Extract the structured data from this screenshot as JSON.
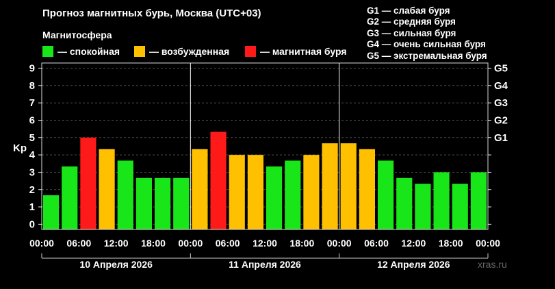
{
  "title": "Прогноз магнитных бурь, Москва (UTC+03)",
  "legend": {
    "title": "Магнитосфера",
    "items": [
      {
        "label": "— спокойная",
        "color": "#19e619"
      },
      {
        "label": "— возбужденная",
        "color": "#ffc000"
      },
      {
        "label": "— магнитная буря",
        "color": "#ff1a1a"
      }
    ]
  },
  "g_scale": [
    "G1 — слабая буря",
    "G2 — средняя буря",
    "G3 — сильная буря",
    "G4 — очень сильная буря",
    "G5 — экстремальная буря"
  ],
  "watermark": "xras.ru",
  "chart_data": {
    "type": "bar",
    "ylabel": "Kp",
    "ylim": [
      -0.3,
      9.3
    ],
    "yticks": [
      "0",
      "1",
      "2",
      "3",
      "4",
      "5",
      "6",
      "7",
      "8",
      "9"
    ],
    "right_ticks": [
      {
        "label": "G1",
        "kp": 5
      },
      {
        "label": "G2",
        "kp": 6
      },
      {
        "label": "G3",
        "kp": 7
      },
      {
        "label": "G4",
        "kp": 8
      },
      {
        "label": "G5",
        "kp": 9
      }
    ],
    "xtick_labels": [
      "00:00",
      "06:00",
      "12:00",
      "18:00",
      "00:00",
      "06:00",
      "12:00",
      "18:00",
      "00:00",
      "06:00",
      "12:00",
      "18:00",
      "00:00"
    ],
    "days": [
      "10 Апреля 2026",
      "11 Апреля 2026",
      "12 Апреля 2026"
    ],
    "values": [
      1.67,
      3.33,
      5.0,
      4.33,
      3.67,
      2.67,
      2.67,
      2.67,
      4.33,
      5.33,
      4.0,
      4.0,
      3.33,
      3.67,
      4.0,
      4.67,
      4.67,
      4.33,
      3.67,
      2.67,
      2.33,
      3.0,
      2.33,
      3.0
    ],
    "status": [
      "quiet",
      "quiet",
      "storm",
      "active",
      "quiet",
      "quiet",
      "quiet",
      "quiet",
      "active",
      "storm",
      "active",
      "active",
      "quiet",
      "quiet",
      "active",
      "active",
      "active",
      "active",
      "quiet",
      "quiet",
      "quiet",
      "quiet",
      "quiet",
      "quiet"
    ],
    "colors": {
      "quiet": "#19e619",
      "active": "#ffc000",
      "storm": "#ff1a1a"
    }
  }
}
